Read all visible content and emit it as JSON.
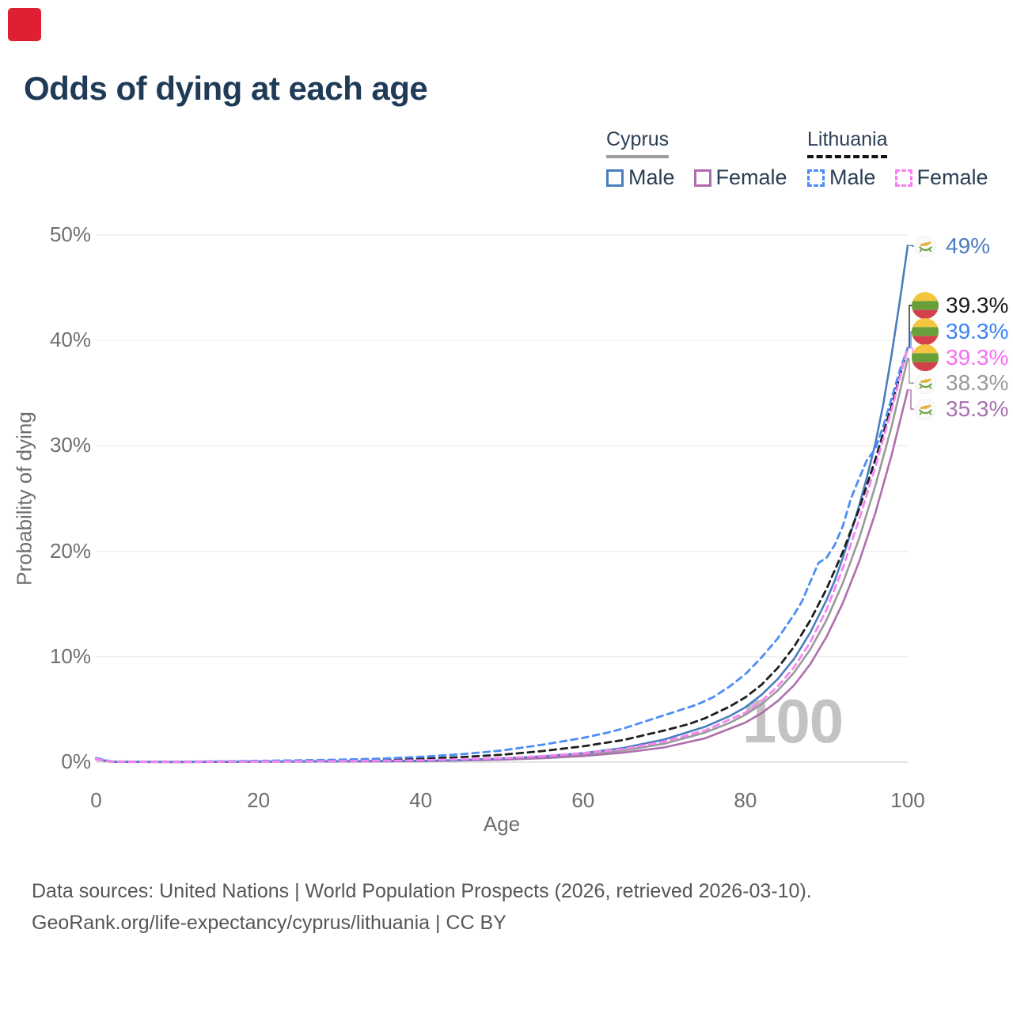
{
  "brand": {
    "logo_color": "#df1f32"
  },
  "title": "Odds of dying at each age",
  "legend": {
    "groups": [
      {
        "country": "Cyprus",
        "line_style": "solid",
        "underline_color": "#9e9e9e",
        "items": [
          {
            "label": "Male",
            "color": "#4a7ebc"
          },
          {
            "label": "Female",
            "color": "#b06cb0"
          }
        ]
      },
      {
        "country": "Lithuania",
        "line_style": "dashed",
        "underline_color": "#141414",
        "items": [
          {
            "label": "Male",
            "color": "#4d8df5"
          },
          {
            "label": "Female",
            "color": "#fb7ef5"
          }
        ]
      }
    ]
  },
  "chart_data": {
    "type": "line",
    "title": "Odds of dying at each age",
    "xlabel": "Age",
    "ylabel": "Probability of dying",
    "xlim": [
      0,
      100
    ],
    "ylim": [
      0,
      50
    ],
    "xticks": [
      0,
      20,
      40,
      60,
      80,
      100
    ],
    "yticks": [
      "0%",
      "10%",
      "20%",
      "30%",
      "40%",
      "50%"
    ],
    "grid": "horizontal",
    "legend_position": "top-right",
    "watermark": "100",
    "x_units": "years of age",
    "y_units": "percent probability of dying at each age",
    "series": [
      {
        "name": "Cyprus",
        "country": "Cyprus",
        "sex": "both",
        "flag": "cyprus",
        "color": "#9a9a9a",
        "dash": false,
        "end_label": "38.3%",
        "label_color": "#9a9a9a",
        "points": [
          [
            0,
            0.27
          ],
          [
            2,
            0.03
          ],
          [
            10,
            0.02
          ],
          [
            20,
            0.05
          ],
          [
            30,
            0.07
          ],
          [
            40,
            0.11
          ],
          [
            45,
            0.17
          ],
          [
            50,
            0.29
          ],
          [
            55,
            0.46
          ],
          [
            60,
            0.72
          ],
          [
            65,
            1.1
          ],
          [
            70,
            1.75
          ],
          [
            75,
            2.8
          ],
          [
            78,
            3.7
          ],
          [
            80,
            4.5
          ],
          [
            82,
            5.5
          ],
          [
            84,
            6.8
          ],
          [
            86,
            8.5
          ],
          [
            88,
            10.7
          ],
          [
            90,
            13.5
          ],
          [
            92,
            17.0
          ],
          [
            94,
            21.2
          ],
          [
            96,
            26.2
          ],
          [
            98,
            31.8
          ],
          [
            100,
            38.3
          ]
        ]
      },
      {
        "name": "Cyprus Female",
        "country": "Cyprus",
        "sex": "female",
        "flag": "cyprus",
        "color": "#ad6fad",
        "dash": false,
        "end_label": "35.3%",
        "label_color": "#a873ad",
        "points": [
          [
            0,
            0.24
          ],
          [
            2,
            0.02
          ],
          [
            10,
            0.01
          ],
          [
            20,
            0.04
          ],
          [
            30,
            0.06
          ],
          [
            40,
            0.09
          ],
          [
            50,
            0.23
          ],
          [
            55,
            0.37
          ],
          [
            60,
            0.58
          ],
          [
            65,
            0.9
          ],
          [
            70,
            1.4
          ],
          [
            75,
            2.25
          ],
          [
            80,
            3.75
          ],
          [
            82,
            4.65
          ],
          [
            84,
            5.8
          ],
          [
            86,
            7.3
          ],
          [
            88,
            9.3
          ],
          [
            90,
            11.9
          ],
          [
            92,
            15.1
          ],
          [
            94,
            19.0
          ],
          [
            96,
            23.6
          ],
          [
            98,
            29.1
          ],
          [
            100,
            35.3
          ]
        ]
      },
      {
        "name": "Cyprus Male",
        "country": "Cyprus",
        "sex": "male",
        "flag": "cyprus",
        "color": "#4a7ebc",
        "dash": false,
        "end_label": "49%",
        "label_color": "#4a7ec0",
        "points": [
          [
            0,
            0.3
          ],
          [
            2,
            0.03
          ],
          [
            10,
            0.02
          ],
          [
            20,
            0.06
          ],
          [
            30,
            0.08
          ],
          [
            40,
            0.13
          ],
          [
            45,
            0.2
          ],
          [
            50,
            0.35
          ],
          [
            55,
            0.55
          ],
          [
            60,
            0.85
          ],
          [
            65,
            1.35
          ],
          [
            70,
            2.15
          ],
          [
            75,
            3.35
          ],
          [
            78,
            4.35
          ],
          [
            80,
            5.2
          ],
          [
            82,
            6.4
          ],
          [
            84,
            7.9
          ],
          [
            86,
            9.8
          ],
          [
            88,
            12.3
          ],
          [
            90,
            15.4
          ],
          [
            91,
            17.2
          ],
          [
            92,
            19.4
          ],
          [
            93,
            21.8
          ],
          [
            94,
            24.3
          ],
          [
            95,
            27.1
          ],
          [
            96,
            30.2
          ],
          [
            97,
            34.0
          ],
          [
            98,
            38.6
          ],
          [
            99,
            43.6
          ],
          [
            100,
            49.0
          ]
        ]
      },
      {
        "name": "Lithuania",
        "country": "Lithuania",
        "sex": "both",
        "flag": "lithuania",
        "color": "#1f1f1f",
        "dash": true,
        "end_label": "39.3%",
        "label_color": "#1a1a1a",
        "points": [
          [
            0,
            0.33
          ],
          [
            2,
            0.04
          ],
          [
            10,
            0.02
          ],
          [
            20,
            0.08
          ],
          [
            30,
            0.15
          ],
          [
            35,
            0.22
          ],
          [
            40,
            0.32
          ],
          [
            45,
            0.48
          ],
          [
            50,
            0.7
          ],
          [
            55,
            1.05
          ],
          [
            60,
            1.5
          ],
          [
            65,
            2.1
          ],
          [
            70,
            3.0
          ],
          [
            73,
            3.6
          ],
          [
            75,
            4.15
          ],
          [
            78,
            5.25
          ],
          [
            80,
            6.15
          ],
          [
            82,
            7.35
          ],
          [
            84,
            8.95
          ],
          [
            86,
            10.95
          ],
          [
            88,
            13.45
          ],
          [
            90,
            16.45
          ],
          [
            92,
            19.95
          ],
          [
            94,
            24.0
          ],
          [
            96,
            28.7
          ],
          [
            98,
            33.8
          ],
          [
            100,
            39.3
          ]
        ]
      },
      {
        "name": "Lithuania Male",
        "country": "Lithuania",
        "sex": "male",
        "flag": "lithuania",
        "color": "#4d8df5",
        "dash": true,
        "end_label": "39.3%",
        "label_color": "#3b82f6",
        "points": [
          [
            0,
            0.38
          ],
          [
            2,
            0.05
          ],
          [
            10,
            0.03
          ],
          [
            20,
            0.12
          ],
          [
            25,
            0.17
          ],
          [
            30,
            0.23
          ],
          [
            35,
            0.33
          ],
          [
            40,
            0.5
          ],
          [
            45,
            0.75
          ],
          [
            50,
            1.1
          ],
          [
            55,
            1.65
          ],
          [
            60,
            2.3
          ],
          [
            63,
            2.8
          ],
          [
            65,
            3.2
          ],
          [
            67,
            3.7
          ],
          [
            68,
            3.95
          ],
          [
            70,
            4.45
          ],
          [
            72,
            4.95
          ],
          [
            74,
            5.45
          ],
          [
            76,
            6.15
          ],
          [
            78,
            7.15
          ],
          [
            80,
            8.35
          ],
          [
            82,
            9.95
          ],
          [
            84,
            11.75
          ],
          [
            86,
            14.0
          ],
          [
            87,
            15.3
          ],
          [
            88,
            17.1
          ],
          [
            89,
            18.9
          ],
          [
            90,
            19.4
          ],
          [
            91,
            20.6
          ],
          [
            92,
            22.4
          ],
          [
            93,
            25.0
          ],
          [
            94,
            26.9
          ],
          [
            95,
            28.7
          ],
          [
            96,
            29.7
          ],
          [
            97,
            31.9
          ],
          [
            98,
            34.5
          ],
          [
            99,
            37.1
          ],
          [
            100,
            39.3
          ]
        ]
      },
      {
        "name": "Lithuania Female",
        "country": "Lithuania",
        "sex": "female",
        "flag": "lithuania",
        "color": "#f884f3",
        "dash": true,
        "end_label": "39.3%",
        "label_color": "#f86ef2",
        "points": [
          [
            0,
            0.3
          ],
          [
            2,
            0.03
          ],
          [
            10,
            0.015
          ],
          [
            20,
            0.05
          ],
          [
            30,
            0.09
          ],
          [
            40,
            0.17
          ],
          [
            50,
            0.37
          ],
          [
            55,
            0.58
          ],
          [
            60,
            0.85
          ],
          [
            65,
            1.25
          ],
          [
            70,
            1.95
          ],
          [
            75,
            3.0
          ],
          [
            80,
            4.7
          ],
          [
            82,
            5.8
          ],
          [
            84,
            7.2
          ],
          [
            86,
            9.0
          ],
          [
            88,
            11.4
          ],
          [
            90,
            14.5
          ],
          [
            92,
            18.4
          ],
          [
            94,
            23.0
          ],
          [
            96,
            28.0
          ],
          [
            98,
            33.4
          ],
          [
            100,
            39.3
          ]
        ]
      }
    ],
    "flag_colors": {
      "lithuania": {
        "yellow": "#F4C63F",
        "green": "#689F38",
        "red": "#D3414B"
      },
      "cyprus": {
        "island": "#E0B23F",
        "branches": "#70A244",
        "background": "#fafafa"
      }
    }
  },
  "footer": {
    "line1": "Data sources: United Nations | World Population Prospects (2026, retrieved 2026-03-10).",
    "line2": "GeoRank.org/life-expectancy/cyprus/lithuania | CC BY"
  }
}
